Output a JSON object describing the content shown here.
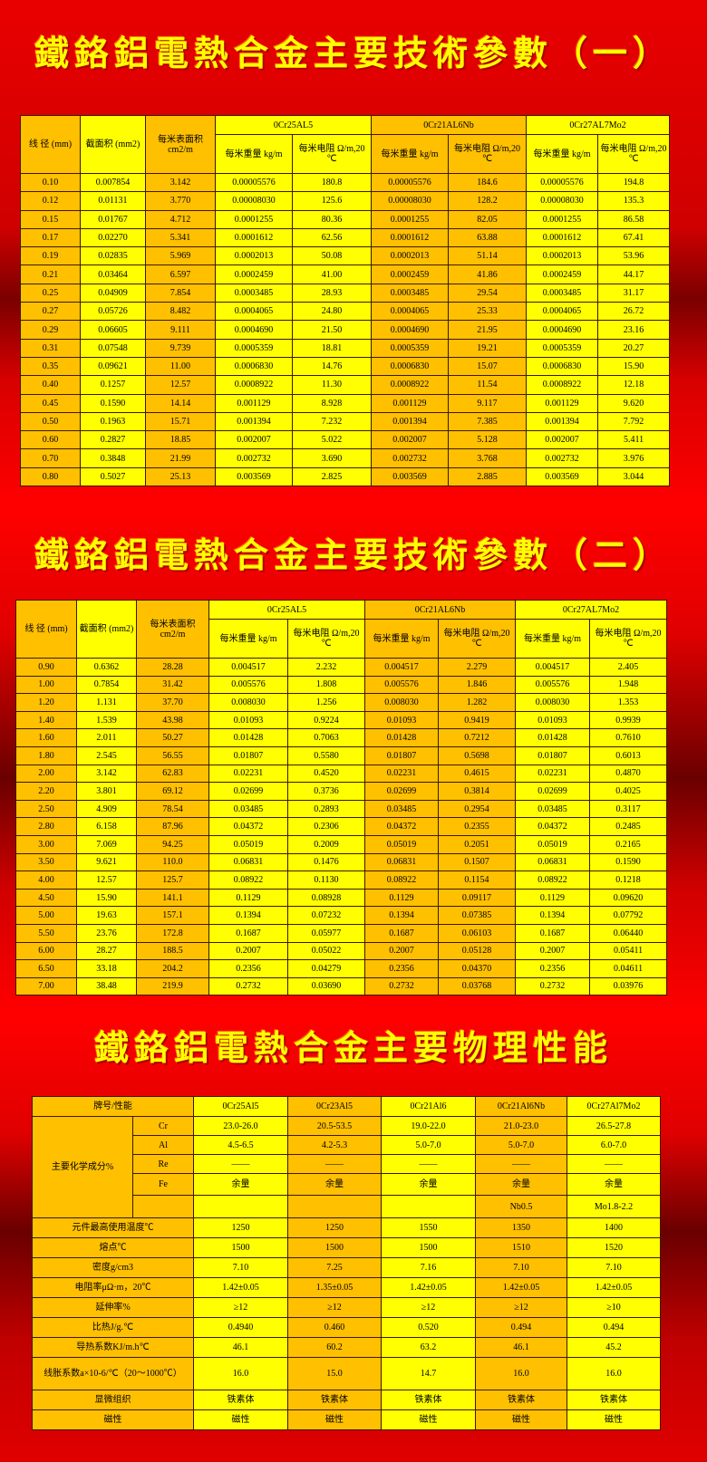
{
  "titles": {
    "t1": "鐵鉻鋁電熱合金主要技術參數（一）",
    "t2": "鐵鉻鋁電熱合金主要技術參數（二）",
    "t3": "鐵鉻鋁電熱合金主要物理性能"
  },
  "colors": {
    "yellow": "#ffff00",
    "orange": "#ffc000",
    "background": "#e00000"
  },
  "param_header": {
    "diameter": "线 径 (mm)",
    "area": "截面积 (mm2)",
    "surface": "每米表面积 cm2/m",
    "alloys": [
      "0Cr25AL5",
      "0Cr21AL6Nb",
      "0Cr27AL7Mo2"
    ],
    "weight": "每米重量 kg/m",
    "resistance": "每米电阻 Ω/m,20 ℃"
  },
  "table1": [
    [
      "0.10",
      "0.007854",
      "3.142",
      "0.00005576",
      "180.8",
      "0.00005576",
      "184.6",
      "0.00005576",
      "194.8"
    ],
    [
      "0.12",
      "0.01131",
      "3.770",
      "0.00008030",
      "125.6",
      "0.00008030",
      "128.2",
      "0.00008030",
      "135.3"
    ],
    [
      "0.15",
      "0.01767",
      "4.712",
      "0.0001255",
      "80.36",
      "0.0001255",
      "82.05",
      "0.0001255",
      "86.58"
    ],
    [
      "0.17",
      "0.02270",
      "5.341",
      "0.0001612",
      "62.56",
      "0.0001612",
      "63.88",
      "0.0001612",
      "67.41"
    ],
    [
      "0.19",
      "0.02835",
      "5.969",
      "0.0002013",
      "50.08",
      "0.0002013",
      "51.14",
      "0.0002013",
      "53.96"
    ],
    [
      "0.21",
      "0.03464",
      "6.597",
      "0.0002459",
      "41.00",
      "0.0002459",
      "41.86",
      "0.0002459",
      "44.17"
    ],
    [
      "0.25",
      "0.04909",
      "7.854",
      "0.0003485",
      "28.93",
      "0.0003485",
      "29.54",
      "0.0003485",
      "31.17"
    ],
    [
      "0.27",
      "0.05726",
      "8.482",
      "0.0004065",
      "24.80",
      "0.0004065",
      "25.33",
      "0.0004065",
      "26.72"
    ],
    [
      "0.29",
      "0.06605",
      "9.111",
      "0.0004690",
      "21.50",
      "0.0004690",
      "21.95",
      "0.0004690",
      "23.16"
    ],
    [
      "0.31",
      "0.07548",
      "9.739",
      "0.0005359",
      "18.81",
      "0.0005359",
      "19.21",
      "0.0005359",
      "20.27"
    ],
    [
      "0.35",
      "0.09621",
      "11.00",
      "0.0006830",
      "14.76",
      "0.0006830",
      "15.07",
      "0.0006830",
      "15.90"
    ],
    [
      "0.40",
      "0.1257",
      "12.57",
      "0.0008922",
      "11.30",
      "0.0008922",
      "11.54",
      "0.0008922",
      "12.18"
    ],
    [
      "0.45",
      "0.1590",
      "14.14",
      "0.001129",
      "8.928",
      "0.001129",
      "9.117",
      "0.001129",
      "9.620"
    ],
    [
      "0.50",
      "0.1963",
      "15.71",
      "0.001394",
      "7.232",
      "0.001394",
      "7.385",
      "0.001394",
      "7.792"
    ],
    [
      "0.60",
      "0.2827",
      "18.85",
      "0.002007",
      "5.022",
      "0.002007",
      "5.128",
      "0.002007",
      "5.411"
    ],
    [
      "0.70",
      "0.3848",
      "21.99",
      "0.002732",
      "3.690",
      "0.002732",
      "3.768",
      "0.002732",
      "3.976"
    ],
    [
      "0.80",
      "0.5027",
      "25.13",
      "0.003569",
      "2.825",
      "0.003569",
      "2.885",
      "0.003569",
      "3.044"
    ]
  ],
  "table2": [
    [
      "0.90",
      "0.6362",
      "28.28",
      "0.004517",
      "2.232",
      "0.004517",
      "2.279",
      "0.004517",
      "2.405"
    ],
    [
      "1.00",
      "0.7854",
      "31.42",
      "0.005576",
      "1.808",
      "0.005576",
      "1.846",
      "0.005576",
      "1.948"
    ],
    [
      "1.20",
      "1.131",
      "37.70",
      "0.008030",
      "1.256",
      "0.008030",
      "1.282",
      "0.008030",
      "1.353"
    ],
    [
      "1.40",
      "1.539",
      "43.98",
      "0.01093",
      "0.9224",
      "0.01093",
      "0.9419",
      "0.01093",
      "0.9939"
    ],
    [
      "1.60",
      "2.011",
      "50.27",
      "0.01428",
      "0.7063",
      "0.01428",
      "0.7212",
      "0.01428",
      "0.7610"
    ],
    [
      "1.80",
      "2.545",
      "56.55",
      "0.01807",
      "0.5580",
      "0.01807",
      "0.5698",
      "0.01807",
      "0.6013"
    ],
    [
      "2.00",
      "3.142",
      "62.83",
      "0.02231",
      "0.4520",
      "0.02231",
      "0.4615",
      "0.02231",
      "0.4870"
    ],
    [
      "2.20",
      "3.801",
      "69.12",
      "0.02699",
      "0.3736",
      "0.02699",
      "0.3814",
      "0.02699",
      "0.4025"
    ],
    [
      "2.50",
      "4.909",
      "78.54",
      "0.03485",
      "0.2893",
      "0.03485",
      "0.2954",
      "0.03485",
      "0.3117"
    ],
    [
      "2.80",
      "6.158",
      "87.96",
      "0.04372",
      "0.2306",
      "0.04372",
      "0.2355",
      "0.04372",
      "0.2485"
    ],
    [
      "3.00",
      "7.069",
      "94.25",
      "0.05019",
      "0.2009",
      "0.05019",
      "0.2051",
      "0.05019",
      "0.2165"
    ],
    [
      "3.50",
      "9.621",
      "110.0",
      "0.06831",
      "0.1476",
      "0.06831",
      "0.1507",
      "0.06831",
      "0.1590"
    ],
    [
      "4.00",
      "12.57",
      "125.7",
      "0.08922",
      "0.1130",
      "0.08922",
      "0.1154",
      "0.08922",
      "0.1218"
    ],
    [
      "4.50",
      "15.90",
      "141.1",
      "0.1129",
      "0.08928",
      "0.1129",
      "0.09117",
      "0.1129",
      "0.09620"
    ],
    [
      "5.00",
      "19.63",
      "157.1",
      "0.1394",
      "0.07232",
      "0.1394",
      "0.07385",
      "0.1394",
      "0.07792"
    ],
    [
      "5.50",
      "23.76",
      "172.8",
      "0.1687",
      "0.05977",
      "0.1687",
      "0.06103",
      "0.1687",
      "0.06440"
    ],
    [
      "6.00",
      "28.27",
      "188.5",
      "0.2007",
      "0.05022",
      "0.2007",
      "0.05128",
      "0.2007",
      "0.05411"
    ],
    [
      "6.50",
      "33.18",
      "204.2",
      "0.2356",
      "0.04279",
      "0.2356",
      "0.04370",
      "0.2356",
      "0.04611"
    ],
    [
      "7.00",
      "38.48",
      "219.9",
      "0.2732",
      "0.03690",
      "0.2732",
      "0.03768",
      "0.2732",
      "0.03976"
    ]
  ],
  "physical": {
    "header_label": "牌号/性能",
    "grades": [
      "0Cr25Al5",
      "0Cr23Al5",
      "0Cr21Al6",
      "0Cr21Al6Nb",
      "0Cr27Al7Mo2"
    ],
    "composition_label": "主要化学成分%",
    "composition": [
      {
        "el": "Cr",
        "values": [
          "23.0-26.0",
          "20.5-53.5",
          "19.0-22.0",
          "21.0-23.0",
          "26.5-27.8"
        ]
      },
      {
        "el": "Al",
        "values": [
          "4.5-6.5",
          "4.2-5.3",
          "5.0-7.0",
          "5.0-7.0",
          "6.0-7.0"
        ]
      },
      {
        "el": "Re",
        "values": [
          "——",
          "——",
          "——",
          "——",
          "——"
        ]
      },
      {
        "el": "Fe",
        "values": [
          "余量",
          "余量",
          "余量",
          "余量",
          "余量"
        ]
      },
      {
        "el": "",
        "values": [
          "",
          "",
          "",
          "Nb0.5",
          "Mo1.8-2.2"
        ]
      }
    ],
    "rows": [
      {
        "label": "元件最高使用温度℃",
        "values": [
          "1250",
          "1250",
          "1550",
          "1350",
          "1400"
        ]
      },
      {
        "label": "熔点℃",
        "values": [
          "1500",
          "1500",
          "1500",
          "1510",
          "1520"
        ]
      },
      {
        "label": "密度g/cm3",
        "values": [
          "7.10",
          "7.25",
          "7.16",
          "7.10",
          "7.10"
        ]
      },
      {
        "label": "电阻率μΩ·m，20℃",
        "values": [
          "1.42±0.05",
          "1.35±0.05",
          "1.42±0.05",
          "1.42±0.05",
          "1.42±0.05"
        ]
      },
      {
        "label": "延伸率%",
        "values": [
          "≥12",
          "≥12",
          "≥12",
          "≥12",
          "≥10"
        ]
      },
      {
        "label": "比热J/g.℃",
        "values": [
          "0.4940",
          "0.460",
          "0.520",
          "0.494",
          "0.494"
        ]
      },
      {
        "label": "导热系数KJ/m.h℃",
        "values": [
          "46.1",
          "60.2",
          "63.2",
          "46.1",
          "45.2"
        ]
      },
      {
        "label": "线胀系数a×10-6/℃（20～1000℃）",
        "values": [
          "16.0",
          "15.0",
          "14.7",
          "16.0",
          "16.0"
        ]
      },
      {
        "label": "显微组织",
        "values": [
          "铁素体",
          "铁素体",
          "铁素体",
          "铁素体",
          "铁素体"
        ]
      },
      {
        "label": "磁性",
        "values": [
          "磁性",
          "磁性",
          "磁性",
          "磁性",
          "磁性"
        ]
      }
    ]
  }
}
